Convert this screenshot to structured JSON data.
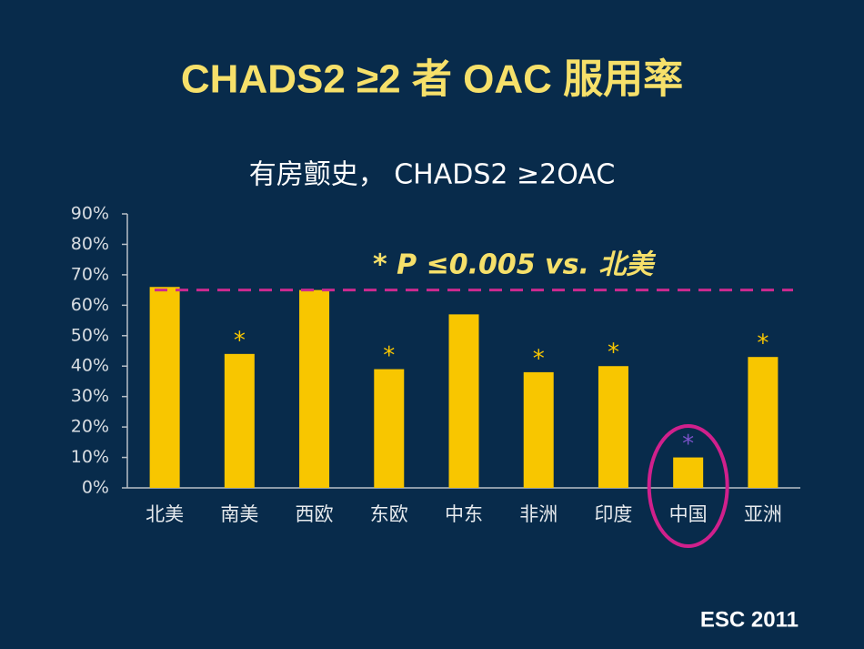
{
  "chart_data": {
    "type": "bar",
    "title": "CHADS2 ≥2 者 OAC 服用率",
    "subtitle": "有房颤史， CHADS2 ≥2OAC",
    "annotation_text": "* P ≤0.005 vs. 北美",
    "footer": "ESC 2011",
    "categories": [
      "北美",
      "南美",
      "西欧",
      "东欧",
      "中东",
      "非洲",
      "印度",
      "中国",
      "亚洲"
    ],
    "values": [
      66,
      44,
      65,
      39,
      57,
      38,
      40,
      10,
      43
    ],
    "color": "#f8c600",
    "ylim": [
      0,
      90
    ],
    "yticks": [
      {
        "value": 0,
        "label": "0%"
      },
      {
        "value": 10,
        "label": "10%"
      },
      {
        "value": 20,
        "label": "20%"
      },
      {
        "value": 30,
        "label": "30%"
      },
      {
        "value": 40,
        "label": "40%"
      },
      {
        "value": 50,
        "label": "50%"
      },
      {
        "value": 60,
        "label": "60%"
      },
      {
        "value": 70,
        "label": "70%"
      },
      {
        "value": 80,
        "label": "80%"
      },
      {
        "value": 90,
        "label": "90%"
      }
    ],
    "reference_line": {
      "value": 65,
      "color": "#cc2a8f"
    },
    "annotations": [
      {
        "category": "南美",
        "text": "*",
        "color": "#f8c600"
      },
      {
        "category": "东欧",
        "text": "*",
        "color": "#f8c600"
      },
      {
        "category": "非洲",
        "text": "*",
        "color": "#f8c600"
      },
      {
        "category": "印度",
        "text": "*",
        "color": "#f8c600"
      },
      {
        "category": "中国",
        "text": "*",
        "color": "#7b52c9"
      },
      {
        "category": "亚洲",
        "text": "*",
        "color": "#f8c600"
      }
    ],
    "highlight_category": "中国",
    "highlight_color": "#d0208c"
  }
}
